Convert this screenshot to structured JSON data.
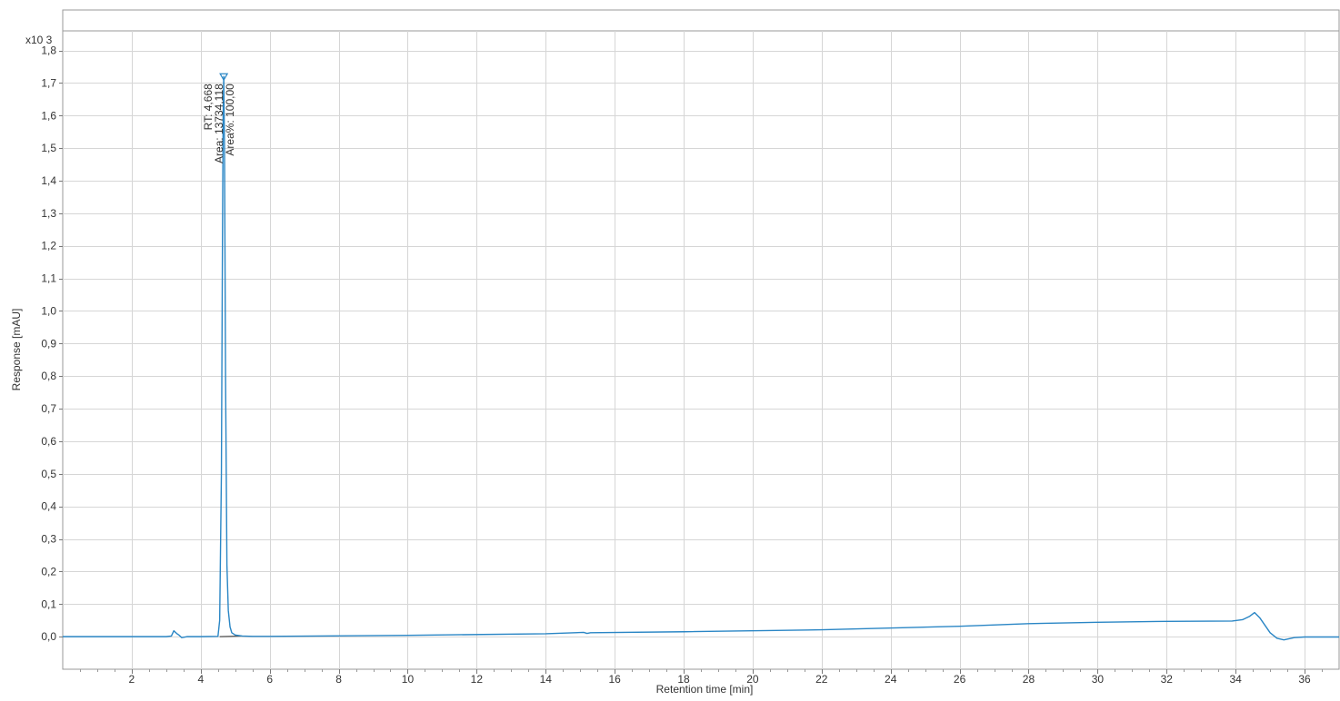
{
  "chart_data": {
    "type": "line",
    "title": "",
    "xlabel": "Retention time [min]",
    "ylabel": "Response [mAU]",
    "y_multiplier_label": "x10 3",
    "xlim": [
      0,
      37
    ],
    "ylim": [
      -0.1,
      1.86
    ],
    "x_ticks": [
      2,
      4,
      6,
      8,
      10,
      12,
      14,
      16,
      18,
      20,
      22,
      24,
      26,
      28,
      30,
      32,
      34,
      36
    ],
    "y_ticks": [
      "0,0",
      "0,1",
      "0,2",
      "0,3",
      "0,4",
      "0,5",
      "0,6",
      "0,7",
      "0,8",
      "0,9",
      "1,0",
      "1,1",
      "1,2",
      "1,3",
      "1,4",
      "1,5",
      "1,6",
      "1,7",
      "1,8"
    ],
    "y_tick_values": [
      0.0,
      0.1,
      0.2,
      0.3,
      0.4,
      0.5,
      0.6,
      0.7,
      0.8,
      0.9,
      1.0,
      1.1,
      1.2,
      1.3,
      1.4,
      1.5,
      1.6,
      1.7,
      1.8
    ],
    "grid": true,
    "line_color": "#2a86c5",
    "baseline_color": "#555555",
    "series": [
      {
        "x": [
          0,
          3.0,
          3.15,
          3.22,
          3.3,
          3.38,
          3.45,
          3.6,
          4.0,
          4.5,
          4.55,
          4.6,
          4.63,
          4.65,
          4.668,
          4.69,
          4.72,
          4.76,
          4.8,
          4.85,
          4.9,
          5.0,
          5.2,
          5.5,
          6.0,
          10.0,
          14.0,
          15.1,
          15.2,
          15.3,
          18.0,
          22.0,
          26.0,
          28.0,
          30.0,
          32.0,
          33.9,
          34.2,
          34.4,
          34.55,
          34.7,
          34.85,
          35.0,
          35.2,
          35.4,
          35.7,
          36.0,
          37.0
        ],
        "y": [
          0.0,
          0.0,
          0.002,
          0.018,
          0.01,
          0.004,
          -0.003,
          0.0,
          0.0,
          0.001,
          0.05,
          0.5,
          1.2,
          1.6,
          1.72,
          1.5,
          0.8,
          0.22,
          0.08,
          0.03,
          0.012,
          0.005,
          0.002,
          0.001,
          0.001,
          0.004,
          0.009,
          0.013,
          0.01,
          0.012,
          0.015,
          0.021,
          0.032,
          0.04,
          0.044,
          0.047,
          0.048,
          0.052,
          0.062,
          0.074,
          0.058,
          0.035,
          0.012,
          -0.005,
          -0.01,
          -0.003,
          -0.001,
          -0.001
        ]
      }
    ],
    "peak": {
      "rt": 4.668,
      "height": 1.72,
      "labels": [
        "RT: 4,668",
        "Area: 13734,118",
        "Area%: 100,00"
      ]
    }
  }
}
